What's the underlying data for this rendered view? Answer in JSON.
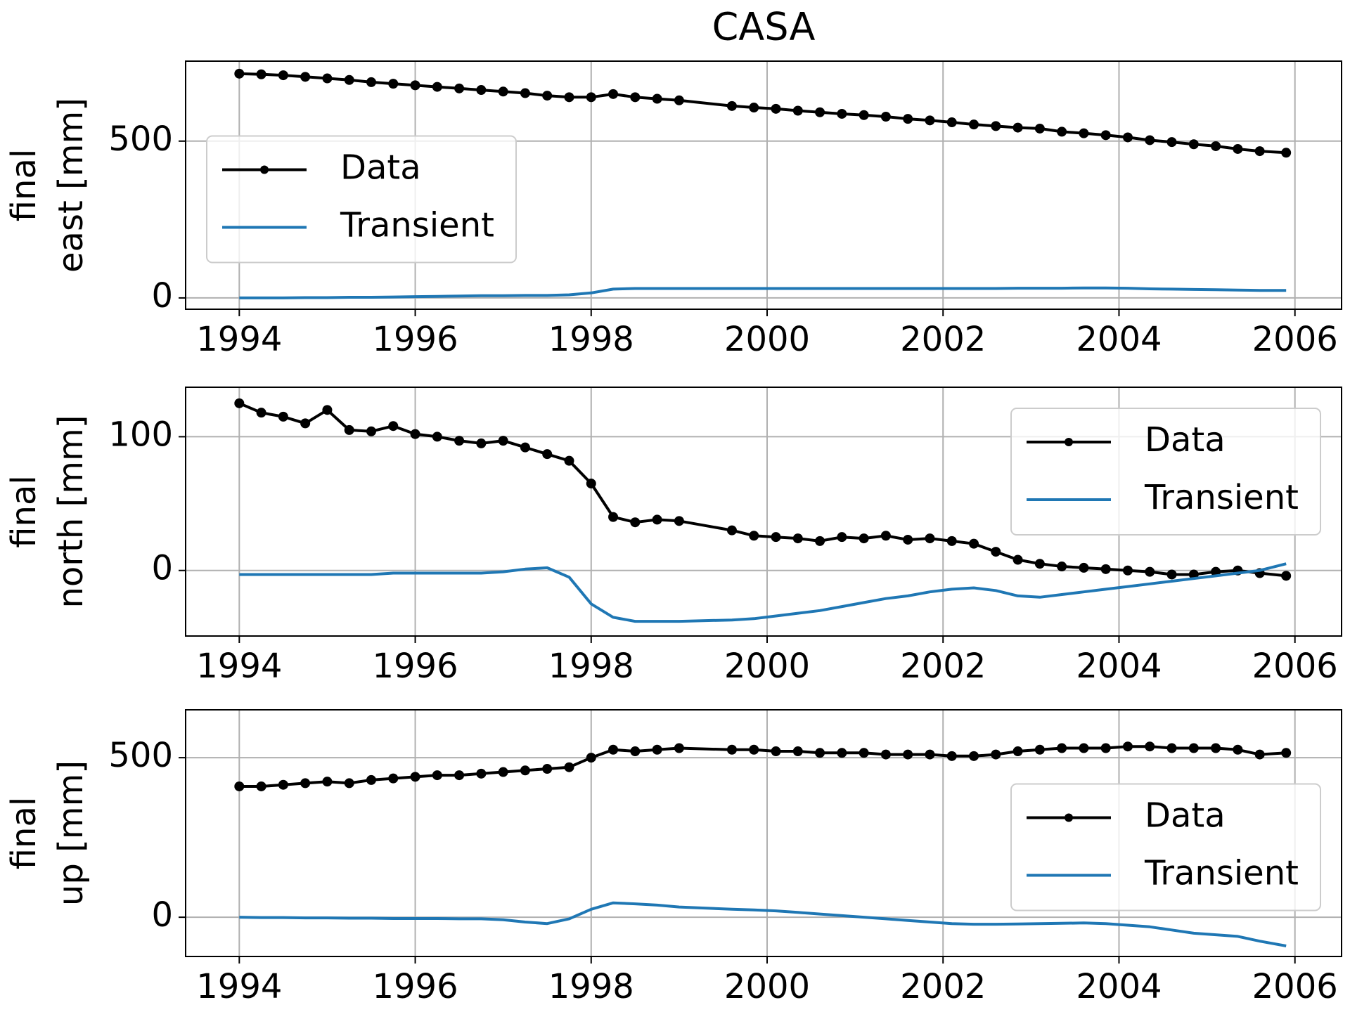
{
  "title": "CASA",
  "chart_data": [
    {
      "type": "line",
      "ylabel": [
        "final",
        "east [mm]"
      ],
      "x": [
        1994.0,
        1994.25,
        1994.5,
        1994.75,
        1995.0,
        1995.25,
        1995.5,
        1995.75,
        1996.0,
        1996.25,
        1996.5,
        1996.75,
        1997.0,
        1997.25,
        1997.5,
        1997.75,
        1998.0,
        1998.25,
        1998.5,
        1998.75,
        1999.0,
        1999.6,
        1999.85,
        2000.1,
        2000.35,
        2000.6,
        2000.85,
        2001.1,
        2001.35,
        2001.6,
        2001.85,
        2002.1,
        2002.35,
        2002.6,
        2002.85,
        2003.1,
        2003.35,
        2003.6,
        2003.85,
        2004.1,
        2004.35,
        2004.6,
        2004.85,
        2005.1,
        2005.35,
        2005.6,
        2005.9
      ],
      "series": [
        {
          "name": "Data",
          "color": "#000000",
          "markers": true,
          "values": [
            715,
            713,
            710,
            705,
            700,
            695,
            688,
            683,
            678,
            673,
            668,
            663,
            658,
            653,
            645,
            640,
            640,
            650,
            640,
            635,
            630,
            612,
            607,
            603,
            597,
            592,
            587,
            583,
            578,
            571,
            566,
            560,
            553,
            548,
            543,
            540,
            530,
            525,
            519,
            512,
            503,
            497,
            490,
            484,
            475,
            468,
            463
          ]
        },
        {
          "name": "Transient",
          "color": "#1f77b4",
          "markers": false,
          "values": [
            0,
            0,
            0,
            1,
            1,
            2,
            2,
            3,
            4,
            5,
            6,
            7,
            7,
            8,
            8,
            10,
            16,
            28,
            30,
            30,
            30,
            30,
            30,
            30,
            30,
            30,
            30,
            30,
            30,
            30,
            30,
            30,
            30,
            30,
            31,
            31,
            31,
            32,
            32,
            31,
            29,
            28,
            27,
            26,
            25,
            24,
            24
          ]
        }
      ],
      "xlim": [
        1993.39,
        2006.53
      ],
      "xticks": [
        1994,
        1996,
        1998,
        2000,
        2002,
        2004,
        2006
      ],
      "ylim": [
        -36,
        755
      ],
      "yticks": [
        0,
        500
      ],
      "grid": true,
      "legend": "center left"
    },
    {
      "type": "line",
      "ylabel": [
        "final",
        "north [mm]"
      ],
      "x": [
        1994.0,
        1994.25,
        1994.5,
        1994.75,
        1995.0,
        1995.25,
        1995.5,
        1995.75,
        1996.0,
        1996.25,
        1996.5,
        1996.75,
        1997.0,
        1997.25,
        1997.5,
        1997.75,
        1998.0,
        1998.25,
        1998.5,
        1998.75,
        1999.0,
        1999.6,
        1999.85,
        2000.1,
        2000.35,
        2000.6,
        2000.85,
        2001.1,
        2001.35,
        2001.6,
        2001.85,
        2002.1,
        2002.35,
        2002.6,
        2002.85,
        2003.1,
        2003.35,
        2003.6,
        2003.85,
        2004.1,
        2004.35,
        2004.6,
        2004.85,
        2005.1,
        2005.35,
        2005.6,
        2005.9
      ],
      "series": [
        {
          "name": "Data",
          "color": "#000000",
          "markers": true,
          "values": [
            125,
            118,
            115,
            110,
            120,
            105,
            104,
            108,
            102,
            100,
            97,
            95,
            97,
            92,
            87,
            82,
            65,
            40,
            36,
            38,
            37,
            30,
            26,
            25,
            24,
            22,
            25,
            24,
            26,
            23,
            24,
            22,
            20,
            14,
            8,
            5,
            3,
            2,
            1,
            0,
            -1,
            -3,
            -3,
            -1,
            0,
            -2,
            -4
          ]
        },
        {
          "name": "Transient",
          "color": "#1f77b4",
          "markers": false,
          "values": [
            -3,
            -3,
            -3,
            -3,
            -3,
            -3,
            -3,
            -2,
            -2,
            -2,
            -2,
            -2,
            -1,
            1,
            2,
            -5,
            -25,
            -35,
            -38,
            -38,
            -38,
            -37,
            -36,
            -34,
            -32,
            -30,
            -27,
            -24,
            -21,
            -19,
            -16,
            -14,
            -13,
            -15,
            -19,
            -20,
            -18,
            -16,
            -14,
            -12,
            -10,
            -8,
            -6,
            -4,
            -2,
            0,
            5
          ]
        }
      ],
      "xlim": [
        1993.39,
        2006.53
      ],
      "xticks": [
        1994,
        1996,
        1998,
        2000,
        2002,
        2004,
        2006
      ],
      "ylim": [
        -49,
        137
      ],
      "yticks": [
        0,
        100
      ],
      "grid": true,
      "legend": "upper right"
    },
    {
      "type": "line",
      "ylabel": [
        "final",
        "up [mm]"
      ],
      "x": [
        1994.0,
        1994.25,
        1994.5,
        1994.75,
        1995.0,
        1995.25,
        1995.5,
        1995.75,
        1996.0,
        1996.25,
        1996.5,
        1996.75,
        1997.0,
        1997.25,
        1997.5,
        1997.75,
        1998.0,
        1998.25,
        1998.5,
        1998.75,
        1999.0,
        1999.6,
        1999.85,
        2000.1,
        2000.35,
        2000.6,
        2000.85,
        2001.1,
        2001.35,
        2001.6,
        2001.85,
        2002.1,
        2002.35,
        2002.6,
        2002.85,
        2003.1,
        2003.35,
        2003.6,
        2003.85,
        2004.1,
        2004.35,
        2004.6,
        2004.85,
        2005.1,
        2005.35,
        2005.6,
        2005.9
      ],
      "series": [
        {
          "name": "Data",
          "color": "#000000",
          "markers": true,
          "values": [
            410,
            410,
            415,
            420,
            425,
            420,
            430,
            435,
            440,
            445,
            445,
            450,
            455,
            460,
            465,
            470,
            500,
            525,
            520,
            525,
            530,
            525,
            525,
            520,
            520,
            515,
            515,
            515,
            510,
            510,
            510,
            505,
            505,
            510,
            520,
            525,
            530,
            530,
            530,
            535,
            535,
            530,
            530,
            530,
            525,
            510,
            515
          ]
        },
        {
          "name": "Transient",
          "color": "#1f77b4",
          "markers": false,
          "values": [
            0,
            -1,
            -1,
            -2,
            -2,
            -3,
            -3,
            -4,
            -4,
            -4,
            -5,
            -5,
            -8,
            -15,
            -20,
            -5,
            25,
            45,
            42,
            38,
            32,
            25,
            23,
            20,
            15,
            10,
            5,
            0,
            -5,
            -10,
            -15,
            -20,
            -22,
            -22,
            -21,
            -20,
            -19,
            -18,
            -20,
            -25,
            -30,
            -40,
            -50,
            -55,
            -60,
            -75,
            -90
          ]
        }
      ],
      "xlim": [
        1993.39,
        2006.53
      ],
      "xticks": [
        1994,
        1996,
        1998,
        2000,
        2002,
        2004,
        2006
      ],
      "ylim": [
        -123,
        650
      ],
      "yticks": [
        0,
        500
      ],
      "grid": true,
      "legend": "center right"
    }
  ]
}
